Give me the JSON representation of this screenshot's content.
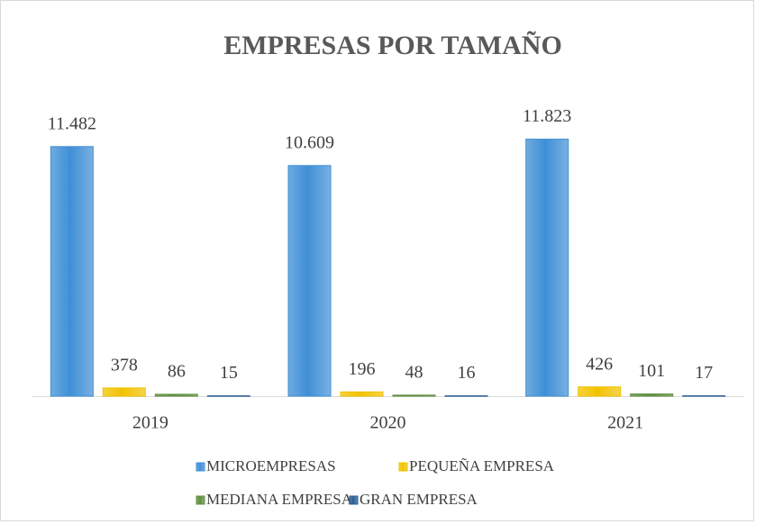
{
  "chart_data": {
    "type": "bar",
    "title": "EMPRESAS POR TAMAÑO",
    "categories": [
      "2019",
      "2020",
      "2021"
    ],
    "series": [
      {
        "name": "MICROEMPRESAS",
        "color": "#3f8fd6",
        "values": [
          11482,
          10609,
          11823
        ],
        "value_labels": [
          "11.482",
          "10.609",
          "11.823"
        ]
      },
      {
        "name": "PEQUEÑA EMPRESA",
        "color": "#f2c200",
        "values": [
          378,
          196,
          426
        ],
        "value_labels": [
          "378",
          "196",
          "426"
        ]
      },
      {
        "name": "MEDIANA EMPRESA",
        "color": "#5f8f3f",
        "values": [
          86,
          48,
          101
        ],
        "value_labels": [
          "86",
          "48",
          "101"
        ]
      },
      {
        "name": "GRAN EMPRESA",
        "color": "#2a5d94",
        "values": [
          15,
          16,
          17
        ],
        "value_labels": [
          "15",
          "16",
          "17"
        ]
      }
    ],
    "ylim": [
      0,
      14000
    ],
    "legend": "bottom"
  }
}
